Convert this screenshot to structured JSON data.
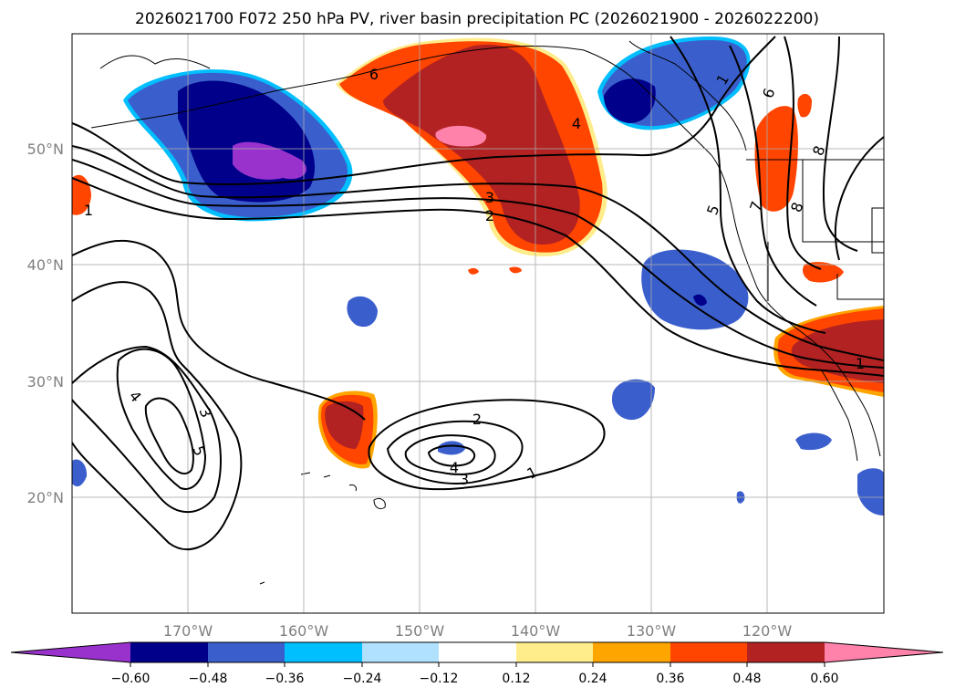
{
  "title": "2026021700 F072 250 hPa PV, river basin precipitation PC (2026021900 - 2026022200)",
  "map": {
    "lon_ticks": [
      "170°W",
      "160°W",
      "150°W",
      "140°W",
      "130°W",
      "120°W"
    ],
    "lat_ticks": [
      "50°N",
      "40°N",
      "30°N",
      "20°N"
    ],
    "contour_labels": [
      "6",
      "4",
      "3",
      "2",
      "1",
      "1",
      "4",
      "3",
      "5",
      "2",
      "4",
      "3",
      "1",
      "5",
      "7",
      "6",
      "8",
      "8",
      "1"
    ]
  },
  "colorbar": {
    "colors": [
      "#9932cc",
      "#00008b",
      "#3a5fcd",
      "#00bfff",
      "#b0e2ff",
      "#ffffff",
      "#ffec8b",
      "#ffa500",
      "#ff4500",
      "#b22222",
      "#ff82ab"
    ],
    "tick_labels": [
      "−0.60",
      "−0.48",
      "−0.36",
      "−0.24",
      "−0.12",
      "0.12",
      "0.24",
      "0.36",
      "0.48",
      "0.60"
    ]
  }
}
